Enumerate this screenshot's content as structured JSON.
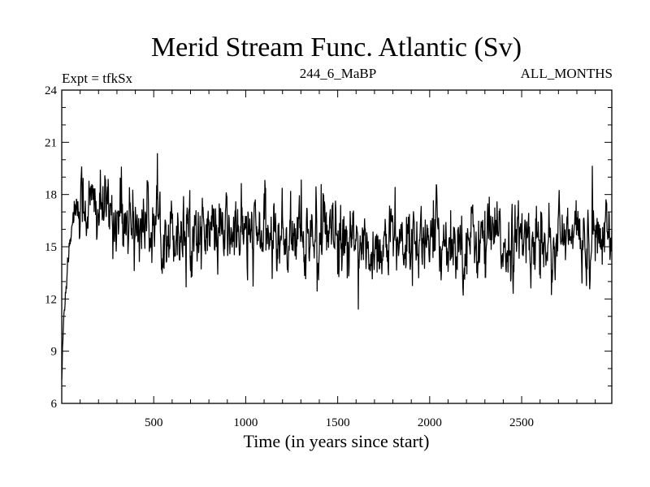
{
  "chart_data": {
    "type": "line",
    "title": "Merid Stream Func. Atlantic (Sv)",
    "subtitle_left": "Expt = tfkSx",
    "subtitle_center": "244_6_MaBP",
    "subtitle_right": "ALL_MONTHS",
    "xlabel": "Time (in years since start)",
    "ylabel": "",
    "xlim": [
      0,
      2990
    ],
    "ylim": [
      6,
      24
    ],
    "xticks": [
      500,
      1000,
      1500,
      2000,
      2500
    ],
    "yticks": [
      6,
      9,
      12,
      15,
      18,
      21,
      24
    ],
    "grid": false,
    "legend": "none",
    "series": [
      {
        "name": "Merid Stream Func. Atlantic",
        "color": "#000000",
        "x": [
          0,
          10,
          20,
          30,
          40,
          50,
          60,
          70,
          80,
          90,
          100,
          150,
          200,
          250,
          300,
          350,
          400,
          450,
          500,
          600,
          700,
          800,
          900,
          1000,
          1100,
          1200,
          1300,
          1400,
          1500,
          1600,
          1650,
          1700,
          1800,
          1900,
          2000,
          2100,
          2200,
          2300,
          2400,
          2450,
          2500,
          2600,
          2700,
          2800,
          2900,
          2990
        ],
        "y": [
          7.5,
          10.5,
          12.5,
          14.0,
          15.0,
          16.0,
          16.8,
          17.2,
          17.5,
          17.5,
          17.4,
          17.3,
          17.1,
          16.9,
          16.8,
          16.6,
          16.4,
          16.3,
          16.2,
          16.0,
          15.9,
          15.8,
          15.7,
          15.7,
          15.6,
          15.6,
          15.5,
          15.5,
          15.3,
          15.0,
          14.8,
          15.0,
          15.3,
          15.4,
          15.4,
          15.4,
          15.4,
          15.3,
          15.3,
          15.2,
          15.3,
          15.4,
          15.4,
          15.5,
          15.5,
          15.5
        ],
        "noise_amplitude": 1.45
      }
    ]
  }
}
